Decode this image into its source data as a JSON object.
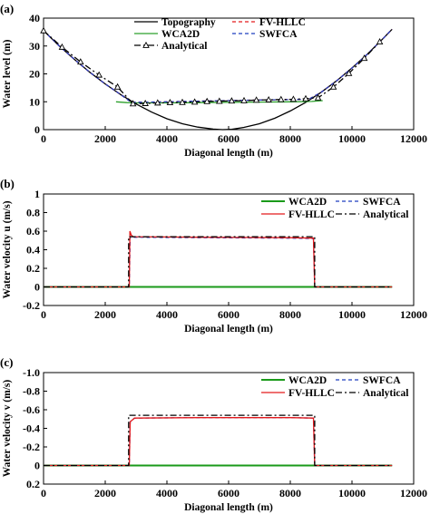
{
  "chart_data": [
    {
      "panel_label": "(a)",
      "type": "line",
      "xlabel": "Diagonal length (m)",
      "ylabel": "Water level (m)",
      "xlim": [
        0,
        12000
      ],
      "ylim": [
        0,
        40
      ],
      "xticks": [
        0,
        2000,
        4000,
        6000,
        8000,
        10000,
        12000
      ],
      "yticks": [
        0,
        10,
        20,
        30,
        40
      ],
      "legend_position": "top-center",
      "series": [
        {
          "name": "Topography",
          "color": "#000000",
          "style": "solid",
          "marker": "none",
          "x": [
            0,
            500,
            1000,
            1500,
            2000,
            2500,
            3000,
            3500,
            4000,
            4500,
            5000,
            5500,
            5800,
            6100,
            6500,
            7000,
            7500,
            8000,
            8500,
            9000,
            9500,
            10000,
            10500,
            11000,
            11300
          ],
          "y": [
            35.5,
            30.1,
            25.2,
            20.6,
            16.4,
            12.6,
            9.2,
            6.3,
            3.9,
            2.1,
            0.9,
            0.2,
            0.0,
            0.1,
            0.8,
            2.1,
            4.1,
            6.7,
            9.8,
            13.4,
            17.5,
            22.1,
            27.1,
            32.6,
            36.0
          ]
        },
        {
          "name": "WCA2D",
          "color": "#2ca02c",
          "style": "solid",
          "marker": "none",
          "x": [
            2350,
            2700,
            3000,
            4000,
            5000,
            6000,
            7000,
            8000,
            8700,
            9050
          ],
          "y": [
            10.0,
            9.7,
            9.6,
            9.6,
            9.7,
            9.8,
            9.9,
            10.0,
            10.1,
            10.4
          ]
        },
        {
          "name": "FV-HLLC",
          "color": "#e31a1c",
          "style": "dash",
          "marker": "none",
          "x": [
            0,
            500,
            1000,
            1500,
            2000,
            2500,
            2850,
            3500,
            4000,
            5000,
            6000,
            7000,
            8000,
            8600,
            9000,
            9500,
            10000,
            10500,
            11000,
            11300
          ],
          "y": [
            35.5,
            30.1,
            25.2,
            20.6,
            16.4,
            12.6,
            9.8,
            9.9,
            10.0,
            10.2,
            10.4,
            10.6,
            10.8,
            10.9,
            13.4,
            17.5,
            22.1,
            27.1,
            32.6,
            36.0
          ]
        },
        {
          "name": "SWFCA",
          "color": "#1f3fbf",
          "style": "dash",
          "marker": "none",
          "x": [
            0,
            500,
            1000,
            1500,
            2000,
            2500,
            2850,
            3500,
            4000,
            5000,
            6000,
            7000,
            8000,
            8600,
            9000,
            9500,
            10000,
            10500,
            11000,
            11300
          ],
          "y": [
            35.5,
            30.1,
            25.2,
            20.6,
            16.4,
            12.6,
            9.8,
            9.9,
            10.0,
            10.2,
            10.4,
            10.6,
            10.8,
            10.9,
            13.4,
            17.5,
            22.1,
            27.1,
            32.6,
            36.0
          ]
        },
        {
          "name": "Analytical",
          "color": "#000000",
          "style": "dashdot",
          "marker": "triangle",
          "x": [
            0,
            600,
            1200,
            1800,
            2400,
            2900,
            3300,
            3700,
            4100,
            4500,
            4900,
            5300,
            5700,
            6100,
            6500,
            6900,
            7300,
            7700,
            8100,
            8500,
            8900,
            9400,
            9900,
            10400,
            10900
          ],
          "y": [
            35.5,
            29.6,
            24.3,
            19.6,
            15.3,
            9.3,
            9.4,
            9.6,
            9.7,
            9.8,
            9.9,
            10.1,
            10.2,
            10.3,
            10.4,
            10.6,
            10.7,
            10.8,
            10.9,
            11.1,
            11.4,
            15.3,
            20.2,
            25.6,
            31.5
          ]
        }
      ]
    },
    {
      "panel_label": "(b)",
      "type": "line",
      "xlabel": "Diagonal length (m)",
      "ylabel": "Water velocity u (m/s)",
      "xlim": [
        0,
        12000
      ],
      "ylim": [
        -0.2,
        1.0
      ],
      "xticks": [
        0,
        2000,
        4000,
        6000,
        8000,
        10000,
        12000
      ],
      "yticks": [
        -0.2,
        0,
        0.2,
        0.4,
        0.6,
        0.8,
        1.0
      ],
      "ytick_labels": [
        "-0.2",
        "0",
        "0.2",
        "0.4",
        "0.6",
        "0.8",
        "1"
      ],
      "legend_position": "top-right",
      "series": [
        {
          "name": "WCA2D",
          "color": "#1a9a1a",
          "style": "solid",
          "x": [
            0,
            11300
          ],
          "y": [
            0,
            0
          ]
        },
        {
          "name": "SWFCA",
          "color": "#1f3fbf",
          "style": "dash",
          "x": [
            0,
            2780,
            2810,
            2900,
            5000,
            8000,
            8750,
            8790,
            11300
          ],
          "y": [
            0,
            0,
            0.54,
            0.535,
            0.53,
            0.525,
            0.52,
            0,
            0
          ]
        },
        {
          "name": "FV-HLLC",
          "color": "#e31a1c",
          "style": "solid",
          "x": [
            0,
            2780,
            2800,
            2840,
            2900,
            5000,
            8000,
            8750,
            8790,
            11300
          ],
          "y": [
            0,
            0,
            0.6,
            0.56,
            0.54,
            0.535,
            0.53,
            0.525,
            0,
            0
          ]
        },
        {
          "name": "Analytical",
          "color": "#000000",
          "style": "dashdot",
          "x": [
            0,
            2760,
            2760,
            8790,
            8790,
            11300
          ],
          "y": [
            0,
            0,
            0.54,
            0.54,
            0,
            0
          ]
        }
      ]
    },
    {
      "panel_label": "(c)",
      "type": "line",
      "xlabel": "Diagonal length (m)",
      "ylabel": "Water velocity v (m/s)",
      "xlim": [
        0,
        12000
      ],
      "ylim": [
        0.2,
        -1.0
      ],
      "y_inverted": true,
      "xticks": [
        0,
        2000,
        4000,
        6000,
        8000,
        10000,
        12000
      ],
      "yticks": [
        0.2,
        0,
        -0.2,
        -0.4,
        -0.6,
        -0.8,
        -1.0
      ],
      "ytick_labels": [
        "0.2",
        "0",
        "-0.2",
        "-0.4",
        "-0.6",
        "-0.8",
        "-1.0"
      ],
      "legend_position": "top-right",
      "series": [
        {
          "name": "WCA2D",
          "color": "#1a9a1a",
          "style": "solid",
          "x": [
            0,
            11300
          ],
          "y": [
            0,
            0
          ]
        },
        {
          "name": "SWFCA",
          "color": "#1f3fbf",
          "style": "dash",
          "x": [
            0,
            2780,
            2810,
            2950,
            5000,
            8000,
            8750,
            8790,
            11300
          ],
          "y": [
            0,
            0,
            -0.47,
            -0.51,
            -0.515,
            -0.515,
            -0.51,
            0,
            0
          ]
        },
        {
          "name": "FV-HLLC",
          "color": "#e31a1c",
          "style": "solid",
          "x": [
            0,
            2780,
            2810,
            2950,
            5000,
            8000,
            8750,
            8790,
            11300
          ],
          "y": [
            0,
            0,
            -0.47,
            -0.51,
            -0.515,
            -0.515,
            -0.51,
            0,
            0
          ]
        },
        {
          "name": "Analytical",
          "color": "#000000",
          "style": "dashdot",
          "x": [
            0,
            2760,
            2760,
            8790,
            8790,
            11300
          ],
          "y": [
            0,
            0,
            -0.54,
            -0.54,
            0,
            0
          ]
        }
      ]
    }
  ]
}
